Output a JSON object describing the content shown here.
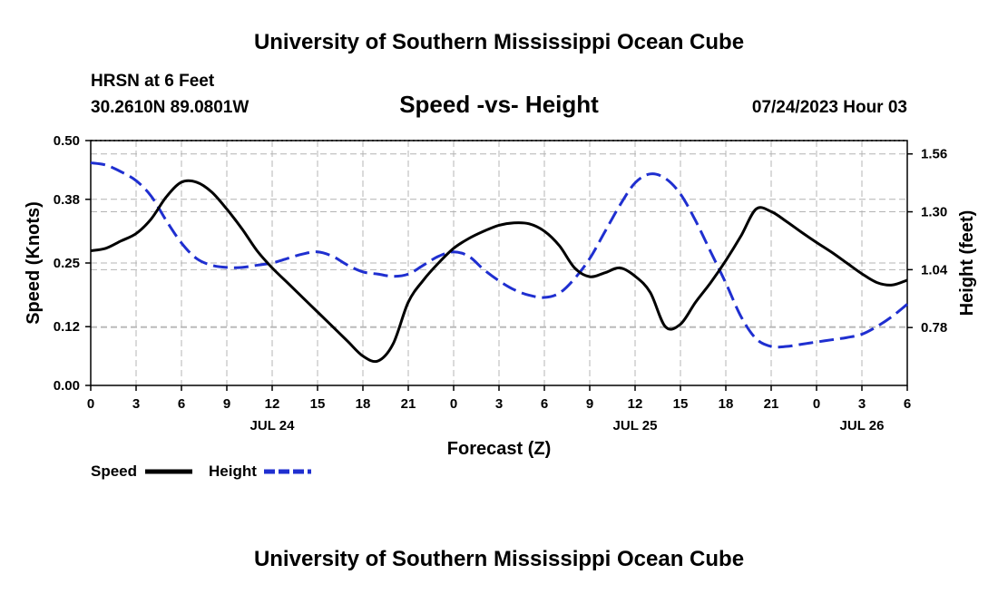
{
  "page": {
    "title_top": "University of Southern Mississippi Ocean Cube",
    "title_bottom": "University of Southern Mississippi Ocean Cube",
    "station": "HRSN at 6 Feet",
    "coords": "30.2610N  89.0801W",
    "subtitle": "Speed -vs- Height",
    "issued": "07/24/2023 Hour 03"
  },
  "chart_data": {
    "type": "line",
    "title": "Speed -vs- Height",
    "xlabel": "Forecast (Z)",
    "ylabel": "Speed (Knots)",
    "ylabel_right": "Height (feet)",
    "x": [
      0,
      1,
      2,
      3,
      4,
      5,
      6,
      7,
      8,
      9,
      10,
      11,
      12,
      13,
      14,
      15,
      16,
      17,
      18,
      19,
      20,
      21,
      22,
      23,
      24,
      25,
      26,
      27,
      28,
      29,
      30,
      31,
      32,
      33,
      34,
      35,
      36,
      37,
      38,
      39,
      40,
      41,
      42,
      43,
      44,
      45,
      46,
      47,
      48,
      49,
      50,
      51,
      52,
      53,
      54
    ],
    "xlim": [
      0,
      54
    ],
    "x_ticks": [
      0,
      3,
      6,
      9,
      12,
      15,
      18,
      21,
      24,
      27,
      30,
      33,
      36,
      39,
      42,
      45,
      48,
      51,
      54
    ],
    "x_tick_labels": [
      "0",
      "3",
      "6",
      "9",
      "12",
      "15",
      "18",
      "21",
      "0",
      "3",
      "6",
      "9",
      "12",
      "15",
      "18",
      "21",
      "0",
      "3",
      "6"
    ],
    "date_labels": [
      {
        "label": "JUL 24",
        "x": 12
      },
      {
        "label": "JUL 25",
        "x": 36
      },
      {
        "label": "JUL 26",
        "x": 51
      }
    ],
    "ylim": [
      0,
      0.5
    ],
    "y_ticks": [
      0.0,
      0.12,
      0.25,
      0.38,
      0.5
    ],
    "y_tick_labels": [
      "0.00",
      "0.12",
      "0.25",
      "0.38",
      "0.50"
    ],
    "ylim_right": [
      0.52,
      1.62
    ],
    "y_right_ticks": [
      0.78,
      1.04,
      1.3,
      1.56
    ],
    "y_right_tick_labels": [
      "0.78",
      "1.04",
      "1.30",
      "1.56"
    ],
    "grid": true,
    "legend_position": "bottom-left",
    "series": [
      {
        "name": "Speed",
        "axis": "left",
        "color": "#000000",
        "dash": "solid",
        "values": [
          0.275,
          0.28,
          0.295,
          0.31,
          0.34,
          0.385,
          0.415,
          0.415,
          0.395,
          0.36,
          0.32,
          0.275,
          0.24,
          0.21,
          0.18,
          0.15,
          0.12,
          0.09,
          0.06,
          0.05,
          0.085,
          0.17,
          0.215,
          0.25,
          0.28,
          0.3,
          0.315,
          0.327,
          0.332,
          0.33,
          0.315,
          0.285,
          0.24,
          0.222,
          0.23,
          0.24,
          0.223,
          0.19,
          0.12,
          0.125,
          0.17,
          0.21,
          0.255,
          0.305,
          0.36,
          0.355,
          0.335,
          0.313,
          0.292,
          0.272,
          0.25,
          0.228,
          0.21,
          0.205,
          0.215
        ]
      },
      {
        "name": "Height",
        "axis": "right",
        "color": "#1f2fd0",
        "dash": "dashed",
        "values": [
          1.52,
          1.51,
          1.48,
          1.44,
          1.37,
          1.26,
          1.16,
          1.09,
          1.06,
          1.05,
          1.05,
          1.06,
          1.07,
          1.09,
          1.11,
          1.12,
          1.1,
          1.06,
          1.03,
          1.02,
          1.01,
          1.02,
          1.06,
          1.1,
          1.12,
          1.1,
          1.04,
          0.99,
          0.95,
          0.925,
          0.915,
          0.935,
          1.0,
          1.09,
          1.21,
          1.33,
          1.43,
          1.47,
          1.45,
          1.38,
          1.26,
          1.12,
          0.98,
          0.83,
          0.73,
          0.695,
          0.695,
          0.705,
          0.715,
          0.725,
          0.735,
          0.75,
          0.785,
          0.83,
          0.885
        ]
      }
    ]
  }
}
